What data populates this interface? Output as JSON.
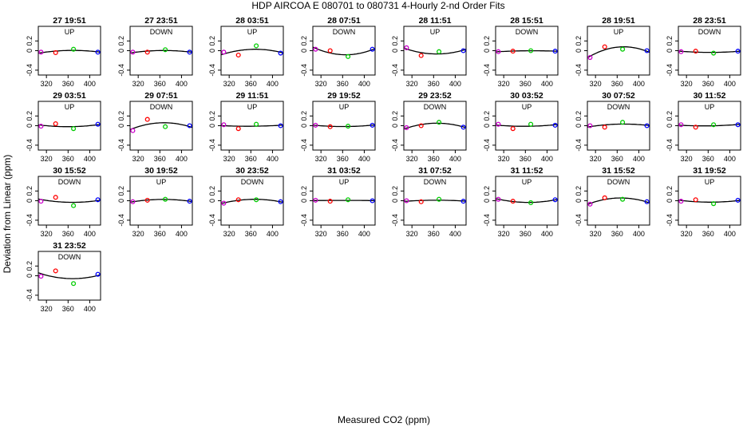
{
  "chart_data": {
    "type": "scatter",
    "title": "HDP    AIRCOA E    080701 to 080731    4-Hourly 2-nd Order Fits",
    "xlabel": "Measured CO2 (ppm)",
    "ylabel": "Deviation from Linear (ppm)",
    "xlim": [
      305,
      420
    ],
    "ylim": [
      -0.5,
      0.5
    ],
    "x_ticks": [
      320,
      360,
      400
    ],
    "x_tick_labels": [
      "320",
      "360",
      "400"
    ],
    "y_ticks": [
      -0.4,
      0.0,
      0.2
    ],
    "y_tick_labels": [
      "-0.4",
      "0",
      "0.2"
    ],
    "grid": false,
    "standard_colors": [
      "#cc00cc",
      "#ff0000",
      "#00cc00",
      "#0000ff"
    ],
    "panels": [
      {
        "title": "27 19:51",
        "direction": "UP",
        "points": [
          [
            310,
            -0.03
          ],
          [
            337,
            -0.04
          ],
          [
            370,
            0.03
          ],
          [
            415,
            -0.03
          ]
        ]
      },
      {
        "title": "27 23:51",
        "direction": "DOWN",
        "points": [
          [
            310,
            -0.03
          ],
          [
            337,
            -0.03
          ],
          [
            370,
            0.02
          ],
          [
            415,
            -0.03
          ]
        ]
      },
      {
        "title": "28 03:51",
        "direction": "UP",
        "points": [
          [
            310,
            -0.03
          ],
          [
            337,
            -0.09
          ],
          [
            370,
            0.1
          ],
          [
            415,
            -0.05
          ]
        ]
      },
      {
        "title": "28 07:51",
        "direction": "DOWN",
        "points": [
          [
            310,
            0.03
          ],
          [
            337,
            0.0
          ],
          [
            370,
            -0.12
          ],
          [
            415,
            0.03
          ]
        ]
      },
      {
        "title": "28 11:51",
        "direction": "UP",
        "points": [
          [
            310,
            0.06
          ],
          [
            337,
            -0.1
          ],
          [
            370,
            -0.02
          ],
          [
            415,
            0.0
          ]
        ]
      },
      {
        "title": "28 15:51",
        "direction": "DOWN",
        "points": [
          [
            310,
            -0.02
          ],
          [
            337,
            -0.01
          ],
          [
            370,
            0.0
          ],
          [
            415,
            -0.01
          ]
        ]
      },
      {
        "title": "28 19:51",
        "direction": "UP",
        "points": [
          [
            310,
            -0.14
          ],
          [
            337,
            0.08
          ],
          [
            370,
            0.03
          ],
          [
            415,
            0.0
          ]
        ]
      },
      {
        "title": "28 23:51",
        "direction": "DOWN",
        "points": [
          [
            310,
            -0.02
          ],
          [
            337,
            -0.01
          ],
          [
            370,
            -0.05
          ],
          [
            415,
            -0.01
          ]
        ]
      },
      {
        "title": "29 03:51",
        "direction": "UP",
        "points": [
          [
            310,
            -0.01
          ],
          [
            337,
            0.04
          ],
          [
            370,
            -0.06
          ],
          [
            415,
            0.03
          ]
        ]
      },
      {
        "title": "29 07:51",
        "direction": "DOWN",
        "points": [
          [
            310,
            -0.1
          ],
          [
            337,
            0.13
          ],
          [
            370,
            -0.02
          ],
          [
            415,
            0.0
          ]
        ]
      },
      {
        "title": "29 11:51",
        "direction": "UP",
        "points": [
          [
            310,
            0.02
          ],
          [
            337,
            -0.06
          ],
          [
            370,
            0.03
          ],
          [
            415,
            0.0
          ]
        ]
      },
      {
        "title": "29 19:52",
        "direction": "UP",
        "points": [
          [
            310,
            0.01
          ],
          [
            337,
            -0.02
          ],
          [
            370,
            -0.01
          ],
          [
            415,
            0.01
          ]
        ]
      },
      {
        "title": "29 23:52",
        "direction": "DOWN",
        "points": [
          [
            310,
            -0.04
          ],
          [
            337,
            0.0
          ],
          [
            370,
            0.07
          ],
          [
            415,
            -0.03
          ]
        ]
      },
      {
        "title": "30 03:52",
        "direction": "UP",
        "points": [
          [
            310,
            0.03
          ],
          [
            337,
            -0.06
          ],
          [
            370,
            0.03
          ],
          [
            415,
            0.01
          ]
        ]
      },
      {
        "title": "30 07:52",
        "direction": "DOWN",
        "points": [
          [
            310,
            0.0
          ],
          [
            337,
            -0.03
          ],
          [
            370,
            0.07
          ],
          [
            415,
            0.0
          ]
        ]
      },
      {
        "title": "30 11:52",
        "direction": "UP",
        "points": [
          [
            310,
            0.02
          ],
          [
            337,
            -0.03
          ],
          [
            370,
            0.02
          ],
          [
            415,
            0.02
          ]
        ]
      },
      {
        "title": "30 15:52",
        "direction": "DOWN",
        "points": [
          [
            310,
            -0.01
          ],
          [
            337,
            0.07
          ],
          [
            370,
            -0.1
          ],
          [
            415,
            0.02
          ]
        ]
      },
      {
        "title": "30 19:52",
        "direction": "UP",
        "points": [
          [
            310,
            -0.02
          ],
          [
            337,
            0.01
          ],
          [
            370,
            0.03
          ],
          [
            415,
            -0.01
          ]
        ]
      },
      {
        "title": "30 23:52",
        "direction": "DOWN",
        "points": [
          [
            310,
            -0.05
          ],
          [
            337,
            0.02
          ],
          [
            370,
            0.02
          ],
          [
            415,
            -0.02
          ]
        ]
      },
      {
        "title": "31 03:52",
        "direction": "UP",
        "points": [
          [
            310,
            0.01
          ],
          [
            337,
            -0.01
          ],
          [
            370,
            0.02
          ],
          [
            415,
            0.0
          ]
        ]
      },
      {
        "title": "31 07:52",
        "direction": "DOWN",
        "points": [
          [
            310,
            0.0
          ],
          [
            337,
            -0.02
          ],
          [
            370,
            0.03
          ],
          [
            415,
            -0.01
          ]
        ]
      },
      {
        "title": "31 11:52",
        "direction": "UP",
        "points": [
          [
            310,
            0.03
          ],
          [
            337,
            -0.01
          ],
          [
            370,
            -0.04
          ],
          [
            415,
            0.02
          ]
        ]
      },
      {
        "title": "31 15:52",
        "direction": "DOWN",
        "points": [
          [
            310,
            -0.07
          ],
          [
            337,
            0.06
          ],
          [
            370,
            0.03
          ],
          [
            415,
            -0.02
          ]
        ]
      },
      {
        "title": "31 19:52",
        "direction": "UP",
        "points": [
          [
            310,
            -0.01
          ],
          [
            337,
            0.02
          ],
          [
            370,
            -0.06
          ],
          [
            415,
            0.01
          ]
        ]
      },
      {
        "title": "31 23:52",
        "direction": "DOWN",
        "points": [
          [
            310,
            -0.01
          ],
          [
            337,
            0.1
          ],
          [
            370,
            -0.16
          ],
          [
            415,
            0.03
          ]
        ]
      }
    ]
  }
}
